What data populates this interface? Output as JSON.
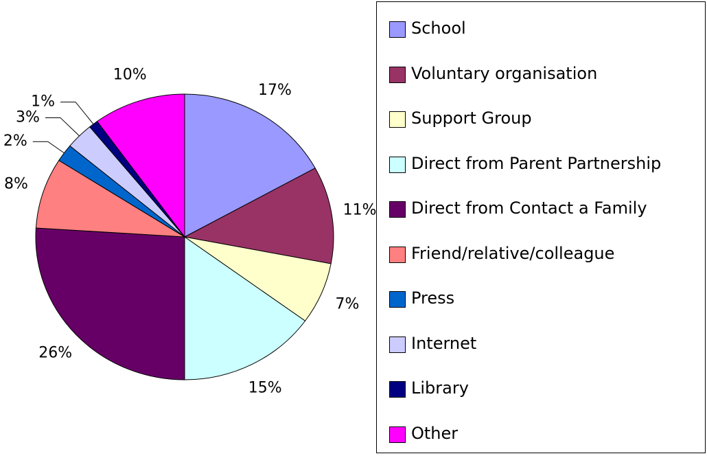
{
  "chart_data": {
    "type": "pie",
    "categories": [
      "School",
      "Voluntary organisation",
      "Support Group",
      "Direct from Parent Partnership",
      "Direct from Contact a Family",
      "Friend/relative/colleague",
      "Press",
      "Internet",
      "Library",
      "Other"
    ],
    "values": [
      17,
      11,
      7,
      15,
      26,
      8,
      2,
      3,
      1,
      10
    ],
    "value_labels": [
      "17%",
      "11%",
      "7%",
      "15%",
      "26%",
      "8%",
      "2%",
      "3%",
      "1%",
      "10%"
    ],
    "colors": [
      "#9999ff",
      "#993366",
      "#ffffcc",
      "#ccffff",
      "#660066",
      "#ff8080",
      "#0066cc",
      "#ccccff",
      "#000080",
      "#ff00ff"
    ],
    "legend": "right"
  }
}
